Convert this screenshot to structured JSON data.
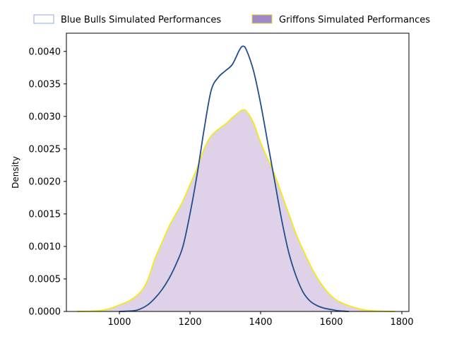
{
  "chart_data": {
    "type": "area",
    "title": "",
    "xlabel": "",
    "ylabel": "Density",
    "xlim": [
      850,
      1820
    ],
    "ylim": [
      0,
      0.00428
    ],
    "xticks": [
      1000,
      1200,
      1400,
      1600,
      1800
    ],
    "yticks": [
      0.0,
      0.0005,
      0.001,
      0.0015,
      0.002,
      0.0025,
      0.003,
      0.0035,
      0.004
    ],
    "ytick_labels": [
      "0.0000",
      "0.0005",
      "0.0010",
      "0.0015",
      "0.0020",
      "0.0025",
      "0.0030",
      "0.0035",
      "0.0040"
    ],
    "legend_position": "top (above plot, horizontal)",
    "grid": false,
    "series": [
      {
        "name": "Blue Bulls Simulated Performances",
        "style": "line",
        "line_color": "#1f4e8c",
        "legend_edge": "#8faadc",
        "x": [
          1000,
          1040,
          1060,
          1080,
          1100,
          1120,
          1140,
          1160,
          1180,
          1200,
          1220,
          1240,
          1260,
          1280,
          1300,
          1320,
          1340,
          1350,
          1360,
          1380,
          1400,
          1420,
          1440,
          1460,
          1480,
          1500,
          1520,
          1540,
          1560,
          1580,
          1600,
          1620,
          1650
        ],
        "y": [
          0.0,
          1e-05,
          4e-05,
          0.0001,
          0.0002,
          0.00033,
          0.0005,
          0.00072,
          0.001,
          0.0015,
          0.0021,
          0.0028,
          0.0034,
          0.0036,
          0.0037,
          0.0038,
          0.00402,
          0.00408,
          0.00402,
          0.0037,
          0.0032,
          0.0026,
          0.002,
          0.0014,
          0.0009,
          0.00055,
          0.0003,
          0.00016,
          9e-05,
          5e-05,
          3e-05,
          1e-05,
          0.0
        ]
      },
      {
        "name": "Griffons Simulated Performances",
        "style": "filled",
        "line_color": "#f4ea1a",
        "fill_color": "#dfd2e8",
        "legend_fill": "#a087c8",
        "x": [
          880,
          940,
          970,
          1000,
          1030,
          1060,
          1080,
          1100,
          1120,
          1140,
          1160,
          1180,
          1200,
          1220,
          1240,
          1260,
          1280,
          1300,
          1320,
          1340,
          1350,
          1360,
          1380,
          1400,
          1420,
          1440,
          1460,
          1480,
          1500,
          1520,
          1540,
          1560,
          1580,
          1600,
          1620,
          1660,
          1700,
          1740,
          1780
        ],
        "y": [
          0.0,
          1e-05,
          4e-05,
          0.0001,
          0.00017,
          0.0003,
          0.00048,
          0.0008,
          0.00105,
          0.0013,
          0.0015,
          0.0017,
          0.00195,
          0.0022,
          0.0025,
          0.0027,
          0.0028,
          0.00288,
          0.00298,
          0.00307,
          0.0031,
          0.00308,
          0.0029,
          0.0026,
          0.00235,
          0.0021,
          0.0018,
          0.0015,
          0.0012,
          0.00095,
          0.00072,
          0.00052,
          0.00036,
          0.00024,
          0.00016,
          7e-05,
          2e-05,
          5e-06,
          0.0
        ]
      }
    ]
  }
}
